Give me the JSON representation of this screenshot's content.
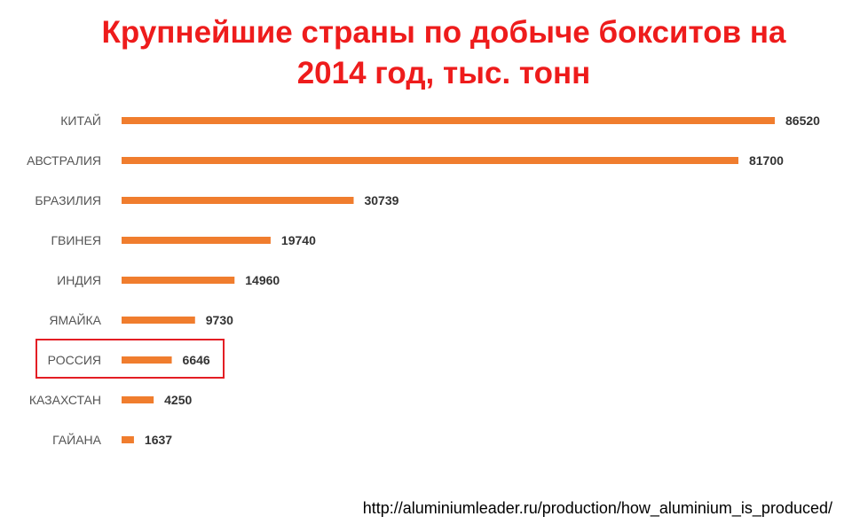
{
  "title_line1": "Крупнейшие страны по добыче бокситов на",
  "title_line2": "2014 год, тыс. тонн",
  "source": "http://aluminiumleader.ru/production/how_aluminium_is_produced/",
  "colors": {
    "bar": "#f07d2e",
    "title": "#ee1c1c",
    "highlight": "#e31e24",
    "label": "#555555",
    "value": "#333333"
  },
  "highlighted_category": "РОССИЯ",
  "chart_data": {
    "type": "bar",
    "orientation": "horizontal",
    "title": "Крупнейшие страны по добыче бокситов на 2014 год, тыс. тонн",
    "categories": [
      "КИТАЙ",
      "АВСТРАЛИЯ",
      "БРАЗИЛИЯ",
      "ГВИНЕЯ",
      "ИНДИЯ",
      "ЯМАЙКА",
      "РОССИЯ",
      "КАЗАХСТАН",
      "ГАЙАНА"
    ],
    "values": [
      86520,
      81700,
      30739,
      19740,
      14960,
      9730,
      6646,
      4250,
      1637
    ],
    "data_labels": [
      "86520",
      "81700",
      "30739",
      "19740",
      "14960",
      "9730",
      "6646",
      "4250",
      "1637"
    ],
    "xlim": [
      0,
      86520
    ],
    "grid": false,
    "legend": "none"
  }
}
